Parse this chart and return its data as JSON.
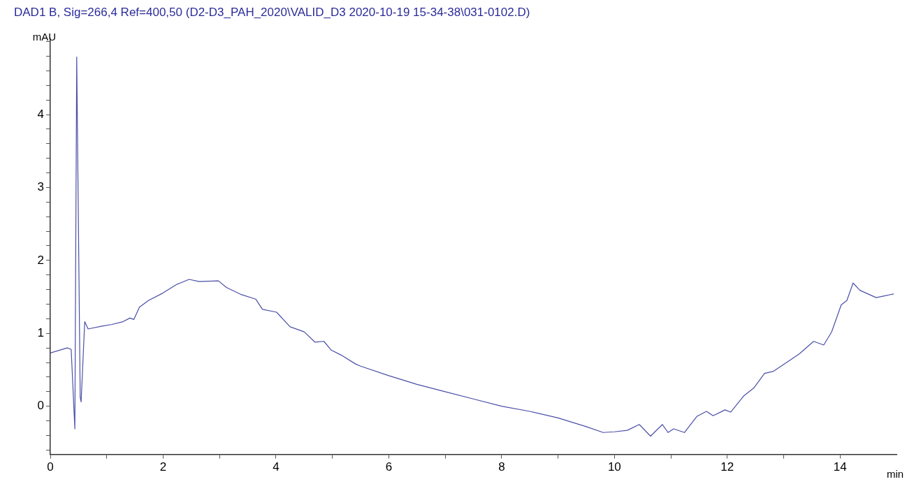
{
  "chart_data": {
    "type": "line",
    "title": "DAD1 B, Sig=266,4 Ref=400,50 (D2-D3_PAH_2020\\VALID_D3 2020-10-19 15-34-38\\031-0102.D)",
    "xlabel": "min",
    "ylabel": "mAU",
    "xlim": [
      0,
      15
    ],
    "ylim": [
      -0.66,
      5.05
    ],
    "xticks": [
      0,
      {
        "value": 1,
        "label": null
      },
      2,
      {
        "value": 3,
        "label": null
      },
      4,
      {
        "value": 5,
        "label": null
      },
      6,
      {
        "value": 7,
        "label": null
      },
      8,
      {
        "value": 9,
        "label": null
      },
      10,
      {
        "value": 11,
        "label": null
      },
      12,
      {
        "value": 13,
        "label": null
      },
      14
    ],
    "yticks": [
      {
        "value": -0.6,
        "label": null
      },
      {
        "value": -0.4,
        "label": null
      },
      {
        "value": -0.2,
        "label": null
      },
      0,
      {
        "value": 0.2,
        "label": null
      },
      {
        "value": 0.4,
        "label": null
      },
      {
        "value": 0.6,
        "label": null
      },
      {
        "value": 0.8,
        "label": null
      },
      1,
      {
        "value": 1.2,
        "label": null
      },
      {
        "value": 1.4,
        "label": null
      },
      {
        "value": 1.6,
        "label": null
      },
      {
        "value": 1.8,
        "label": null
      },
      2,
      {
        "value": 2.2,
        "label": null
      },
      {
        "value": 2.4,
        "label": null
      },
      {
        "value": 2.6,
        "label": null
      },
      {
        "value": 2.8,
        "label": null
      },
      3,
      {
        "value": 3.2,
        "label": null
      },
      {
        "value": 3.4,
        "label": null
      },
      {
        "value": 3.6,
        "label": null
      },
      {
        "value": 3.8,
        "label": null
      },
      4,
      {
        "value": 4.2,
        "label": null
      },
      {
        "value": 4.4,
        "label": null
      },
      {
        "value": 4.6,
        "label": null
      },
      {
        "value": 4.8,
        "label": null
      },
      {
        "value": 5,
        "label": null
      }
    ],
    "grid": false,
    "legend": false,
    "marker": "none",
    "line_style": "solid",
    "series": [
      {
        "color": "#4b4fa6",
        "x": [
          0,
          0.3,
          0.37,
          0.435,
          0.468,
          0.53,
          0.546,
          0.61,
          0.67,
          0.92,
          1.08,
          1.29,
          1.41,
          1.48,
          1.58,
          1.74,
          1.99,
          2.24,
          2.46,
          2.64,
          2.98,
          3.12,
          3.39,
          3.64,
          3.76,
          4.01,
          4.25,
          4.5,
          4.69,
          4.85,
          4.98,
          5.16,
          5.41,
          5.5,
          6,
          6.5,
          7,
          7.5,
          8,
          8.5,
          9,
          9.5,
          9.8,
          10,
          10.23,
          10.44,
          10.64,
          10.85,
          10.95,
          11.05,
          11.24,
          11.46,
          11.63,
          11.75,
          11.96,
          12.06,
          12.29,
          12.47,
          12.66,
          12.82,
          13.07,
          13.28,
          13.53,
          13.71,
          13.85,
          14.02,
          14.12,
          14.23,
          14.35,
          14.64,
          14.95
        ],
        "values": [
          0.73,
          0.8,
          0.78,
          -0.31,
          4.79,
          0.12,
          0.06,
          1.16,
          1.06,
          1.1,
          1.12,
          1.16,
          1.21,
          1.19,
          1.36,
          1.45,
          1.55,
          1.67,
          1.74,
          1.71,
          1.72,
          1.63,
          1.53,
          1.47,
          1.33,
          1.29,
          1.09,
          1.02,
          0.88,
          0.89,
          0.77,
          0.7,
          0.58,
          0.55,
          0.42,
          0.3,
          0.2,
          0.1,
          0.0,
          -0.07,
          -0.16,
          -0.28,
          -0.36,
          -0.35,
          -0.33,
          -0.25,
          -0.41,
          -0.25,
          -0.36,
          -0.31,
          -0.36,
          -0.14,
          -0.07,
          -0.13,
          -0.05,
          -0.08,
          0.14,
          0.25,
          0.45,
          0.48,
          0.61,
          0.72,
          0.89,
          0.84,
          1.02,
          1.39,
          1.45,
          1.69,
          1.59,
          1.49,
          1.54
        ]
      }
    ]
  }
}
